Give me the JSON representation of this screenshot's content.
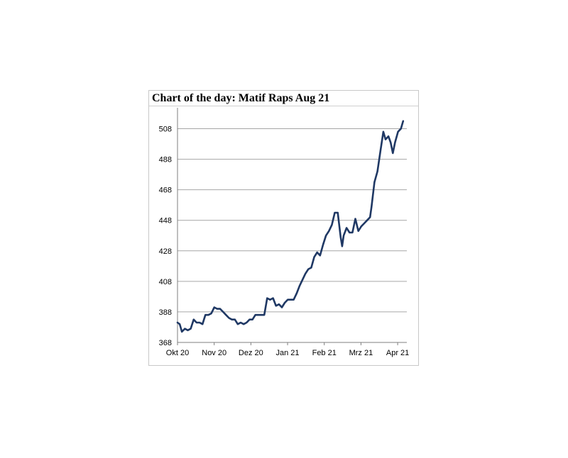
{
  "chart_data": {
    "type": "line",
    "title": "Chart of the day: Matif Raps Aug 21",
    "xlabel": "",
    "ylabel": "",
    "ylim": [
      368,
      518
    ],
    "y_ticks": [
      368,
      388,
      408,
      428,
      448,
      468,
      488,
      508
    ],
    "x_ticks": [
      "Okt 20",
      "Nov 20",
      "Dez 20",
      "Jan 21",
      "Feb 21",
      "Mrz 21",
      "Apr 21"
    ],
    "grid": "horizontal",
    "legend": "none",
    "line_color": "#1f3864",
    "series": [
      {
        "values": [
          [
            0.0,
            381
          ],
          [
            0.15,
            380
          ],
          [
            0.3,
            375
          ],
          [
            0.5,
            377
          ],
          [
            0.7,
            376
          ],
          [
            0.9,
            377
          ],
          [
            1.1,
            383
          ],
          [
            1.3,
            381
          ],
          [
            1.5,
            381
          ],
          [
            1.7,
            380
          ],
          [
            1.9,
            386
          ],
          [
            2.1,
            386
          ],
          [
            2.3,
            387
          ],
          [
            2.5,
            391
          ],
          [
            2.7,
            390
          ],
          [
            2.9,
            390
          ],
          [
            3.1,
            388
          ],
          [
            3.3,
            386
          ],
          [
            3.5,
            384
          ],
          [
            3.7,
            383
          ],
          [
            3.9,
            383
          ],
          [
            4.1,
            380
          ],
          [
            4.3,
            381
          ],
          [
            4.5,
            380
          ],
          [
            4.7,
            381
          ],
          [
            4.9,
            383
          ],
          [
            5.1,
            383
          ],
          [
            5.3,
            386
          ],
          [
            5.5,
            386
          ],
          [
            5.7,
            386
          ],
          [
            5.9,
            386
          ],
          [
            6.1,
            397
          ],
          [
            6.3,
            396
          ],
          [
            6.5,
            397
          ],
          [
            6.7,
            392
          ],
          [
            6.9,
            393
          ],
          [
            7.1,
            391
          ],
          [
            7.3,
            394
          ],
          [
            7.5,
            396
          ],
          [
            7.7,
            396
          ],
          [
            7.9,
            396
          ],
          [
            8.1,
            400
          ],
          [
            8.3,
            405
          ],
          [
            8.5,
            409
          ],
          [
            8.7,
            413
          ],
          [
            8.9,
            416
          ],
          [
            9.1,
            417
          ],
          [
            9.3,
            424
          ],
          [
            9.5,
            427
          ],
          [
            9.7,
            425
          ],
          [
            9.9,
            432
          ],
          [
            10.1,
            438
          ],
          [
            10.3,
            441
          ],
          [
            10.5,
            445
          ],
          [
            10.7,
            453
          ],
          [
            10.9,
            453
          ],
          [
            11.1,
            437
          ],
          [
            11.2,
            431
          ],
          [
            11.3,
            438
          ],
          [
            11.5,
            443
          ],
          [
            11.7,
            440
          ],
          [
            11.9,
            440
          ],
          [
            12.1,
            449
          ],
          [
            12.3,
            441
          ],
          [
            12.5,
            444
          ],
          [
            12.7,
            446
          ],
          [
            12.9,
            448
          ],
          [
            13.1,
            450
          ],
          [
            13.2,
            457
          ],
          [
            13.4,
            473
          ],
          [
            13.6,
            480
          ],
          [
            13.8,
            493
          ],
          [
            14.0,
            506
          ],
          [
            14.15,
            501
          ],
          [
            14.35,
            503
          ],
          [
            14.5,
            499
          ],
          [
            14.65,
            492
          ],
          [
            14.8,
            499
          ],
          [
            15.0,
            506
          ],
          [
            15.2,
            508
          ],
          [
            15.35,
            513
          ]
        ]
      }
    ]
  }
}
